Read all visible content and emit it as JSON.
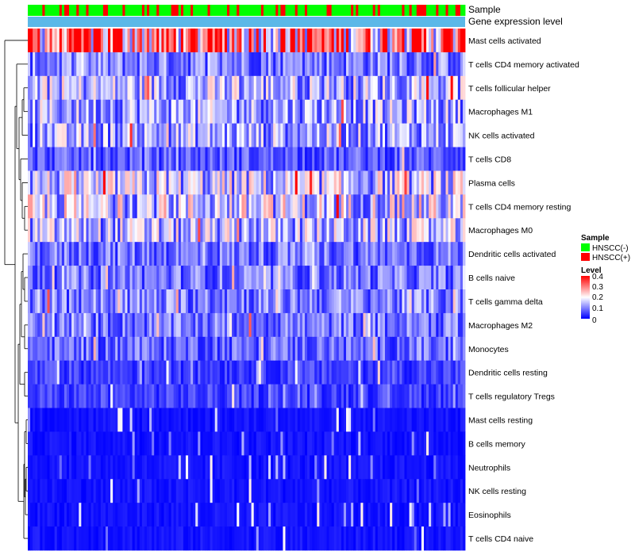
{
  "chart_data": {
    "type": "heatmap",
    "title": "",
    "annotations": [
      {
        "name": "Sample",
        "type": "categorical"
      },
      {
        "name": "Gene expression level",
        "type": "continuous"
      }
    ],
    "rows": [
      "Mast cells activated",
      "T cells CD4 memory activated",
      "T cells follicular helper",
      "Macrophages M1",
      "NK cells activated",
      "T cells CD8",
      "Plasma cells",
      "T cells CD4 memory resting",
      "Macrophages M0",
      "Dendritic cells activated",
      "B cells naive",
      "T cells gamma delta",
      "Macrophages M2",
      "Monocytes",
      "Dendritic cells resting",
      "T cells regulatory  Tregs",
      "Mast cells resting",
      "B cells memory",
      "Neutrophils",
      "NK cells resting",
      "Eosinophils",
      "T cells CD4 naive"
    ],
    "row_means": [
      0.3,
      0.1,
      0.14,
      0.13,
      0.13,
      0.07,
      0.15,
      0.16,
      0.14,
      0.09,
      0.09,
      0.1,
      0.09,
      0.08,
      0.05,
      0.05,
      0.02,
      0.02,
      0.02,
      0.02,
      0.02,
      0.03
    ],
    "n_samples": 180,
    "sample_legend": {
      "title": "Sample",
      "groups": [
        {
          "label": "HNSCC(-)",
          "color": "#00ff00"
        },
        {
          "label": "HNSCC(+)",
          "color": "#ff0000"
        }
      ]
    },
    "level_legend": {
      "title": "Level",
      "ticks": [
        "0.4",
        "0.3",
        "0.2",
        "0.1",
        "0"
      ],
      "range": [
        0,
        0.4
      ],
      "colors": [
        "#0000ff",
        "#ffffff",
        "#ff0000"
      ]
    },
    "gene_expression_color": "#5bb8e8"
  }
}
